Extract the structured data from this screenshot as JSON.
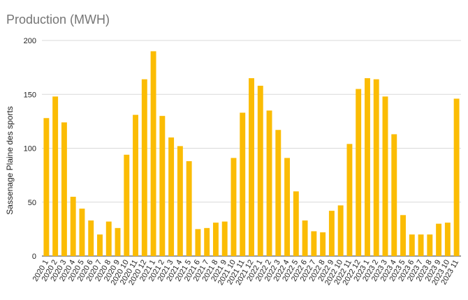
{
  "chart_data": {
    "type": "bar",
    "title": "Production (MWH)",
    "xlabel": "",
    "ylabel": "Sassenage Plaine des sports",
    "ylim": [
      0,
      200
    ],
    "yticks": [
      0,
      50,
      100,
      150,
      200
    ],
    "grid": true,
    "legend": "none",
    "bar_color": "#FBBC04",
    "grid_color": "#D9D9D9",
    "categories": [
      "2020 1",
      "2020 2",
      "2020 3",
      "2020 4",
      "2020 5",
      "2020 6",
      "2020 7",
      "2020 8",
      "2020 9",
      "2020 10",
      "2020 11",
      "2020 12",
      "2021 1",
      "2021 2",
      "2021 3",
      "2021 4",
      "2021 5",
      "2021 6",
      "2021 7",
      "2021 8",
      "2021 9",
      "2021 10",
      "2021 11",
      "2021 12",
      "2022 1",
      "2022 2",
      "2022 3",
      "2022 4",
      "2022 5",
      "2022 6",
      "2022 7",
      "2022 8",
      "2022 9",
      "2022 10",
      "2022 11",
      "2022 12",
      "2023 1",
      "2023 2",
      "2023 3",
      "2023 4",
      "2023 5",
      "2023 6",
      "2023 7",
      "2023 8",
      "2023 9",
      "2023 10",
      "2023 11"
    ],
    "values": [
      128,
      148,
      124,
      55,
      44,
      33,
      20,
      32,
      26,
      94,
      131,
      164,
      190,
      130,
      110,
      102,
      88,
      25,
      26,
      31,
      32,
      91,
      133,
      165,
      158,
      135,
      117,
      91,
      60,
      33,
      23,
      22,
      42,
      47,
      104,
      155,
      165,
      164,
      148,
      113,
      38,
      20,
      20,
      20,
      30,
      31,
      146
    ]
  }
}
